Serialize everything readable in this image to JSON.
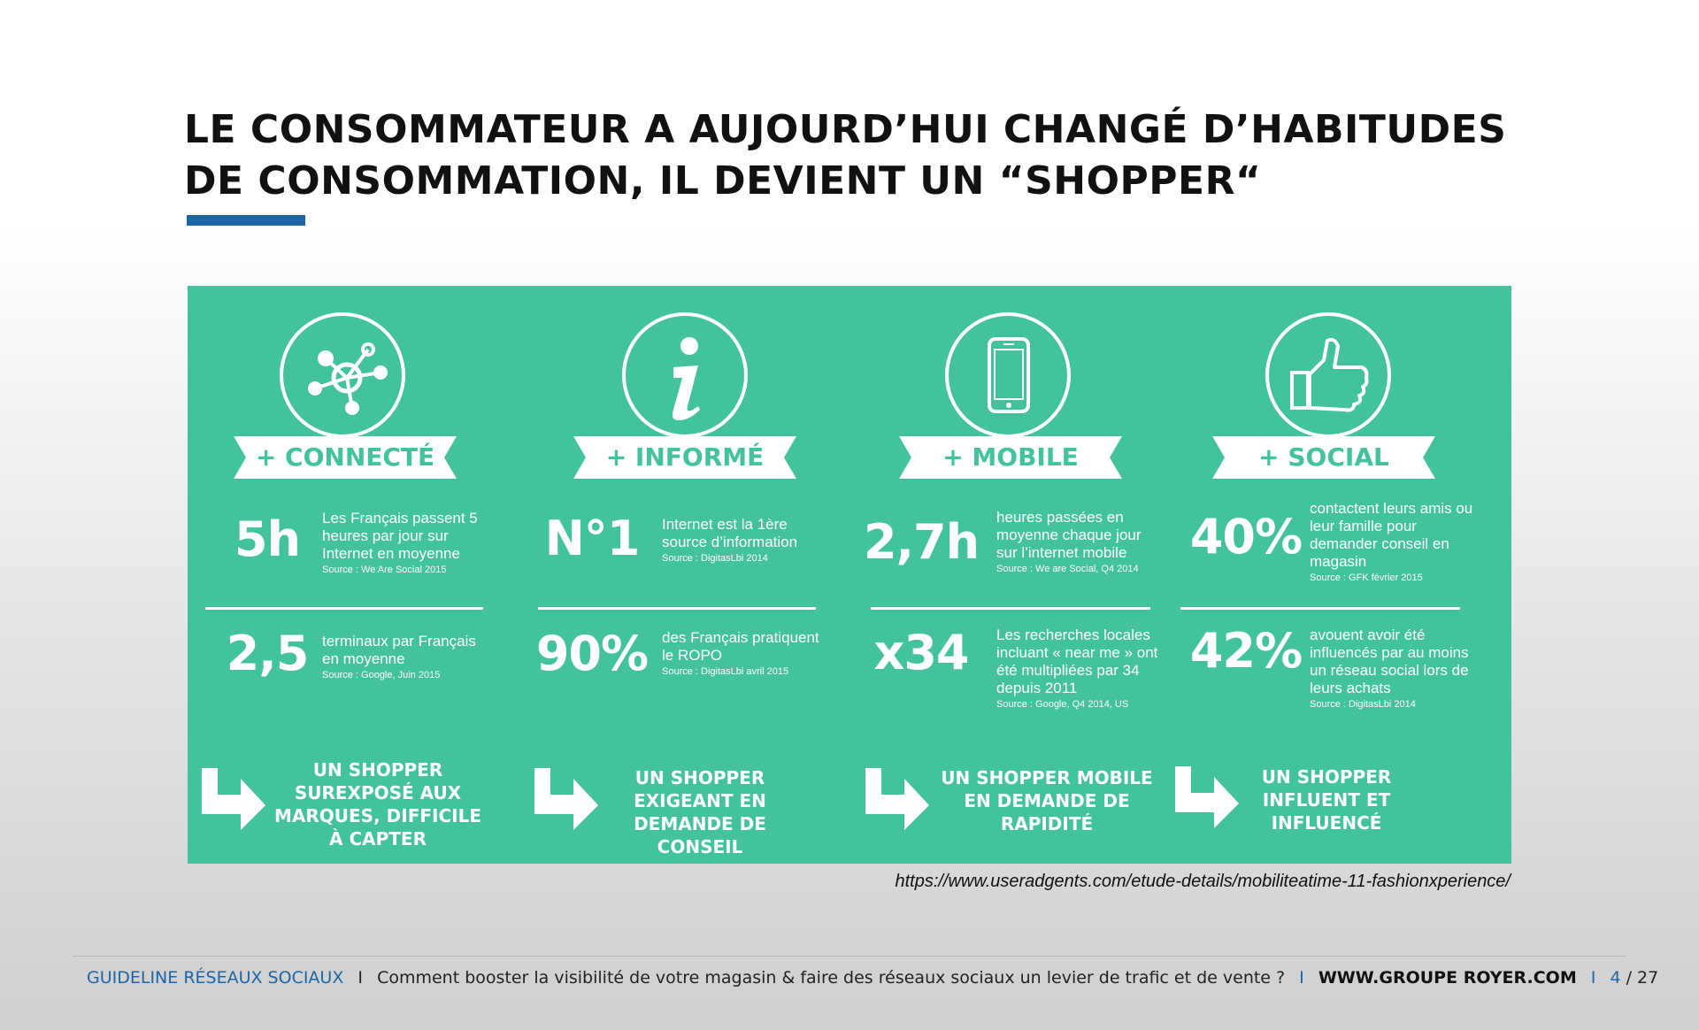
{
  "title": {
    "line1": "LE CONSOMMATEUR A AUJOURD’HUI CHANGÉ D’HABITUDES",
    "line2": "DE CONSOMMATION, IL DEVIENT UN  “SHOPPER“"
  },
  "colors": {
    "panel": "#43c29e",
    "accent_blue": "#1c66a8"
  },
  "columns": [
    {
      "icon": "network-icon",
      "label": "+ CONNECTÉ",
      "stat1": {
        "value": "5h",
        "desc": "Les Français passent 5 heures par jour sur Internet en moyenne",
        "source": "Source : We Are Social 2015"
      },
      "stat2": {
        "value": "2,5",
        "desc": "terminaux par Français en moyenne",
        "source": "Source : Google, Juin 2015"
      },
      "conclusion": "UN SHOPPER SUREXPOSÉ AUX MARQUES, DIFFICILE À CAPTER"
    },
    {
      "icon": "info-icon",
      "label": "+ INFORMÉ",
      "stat1": {
        "value": "N°1",
        "desc": "Internet est la 1ère source d’information",
        "source": "Source : DigitasLbi 2014"
      },
      "stat2": {
        "value": "90%",
        "desc": "des Français pratiquent le ROPO",
        "source": "Source : DigitasLbi avril 2015"
      },
      "conclusion": "UN SHOPPER EXIGEANT EN DEMANDE DE CONSEIL"
    },
    {
      "icon": "smartphone-icon",
      "label": "+ MOBILE",
      "stat1": {
        "value": "2,7h",
        "desc": "heures passées en moyenne chaque jour sur l’internet mobile",
        "source": "Source :  We are Social, Q4 2014"
      },
      "stat2": {
        "value": "x34",
        "desc": "Les recherches locales incluant « near me » ont été multipliées par 34 depuis 2011",
        "source": "Source : Google, Q4 2014, US"
      },
      "conclusion": "UN SHOPPER MOBILE EN DEMANDE DE RAPIDITÉ"
    },
    {
      "icon": "thumbs-up-icon",
      "label": "+ SOCIAL",
      "stat1": {
        "value": "40%",
        "desc": "contactent leurs amis ou leur famille pour demander conseil en magasin",
        "source": "Source : GFK février 2015"
      },
      "stat2": {
        "value": "42%",
        "desc": "avouent avoir été influencés par au moins un réseau social lors de leurs achats",
        "source": "Source : DigitasLbi 2014"
      },
      "conclusion": "UN SHOPPER INFLUENT ET INFLUENCÉ"
    }
  ],
  "source_url": "https://www.useradgents.com/etude-details/mobiliteatime-11-fashionxperience/",
  "footer": {
    "brand": "GUIDELINE RÉSEAUX SOCIAUX",
    "sep": "I",
    "subtitle": "Comment booster la visibilité de votre magasin & faire des réseaux sociaux un levier de trafic et de vente ?",
    "website": "WWW.GROUPE ROYER.COM",
    "page": "4",
    "total": "/ 27"
  }
}
